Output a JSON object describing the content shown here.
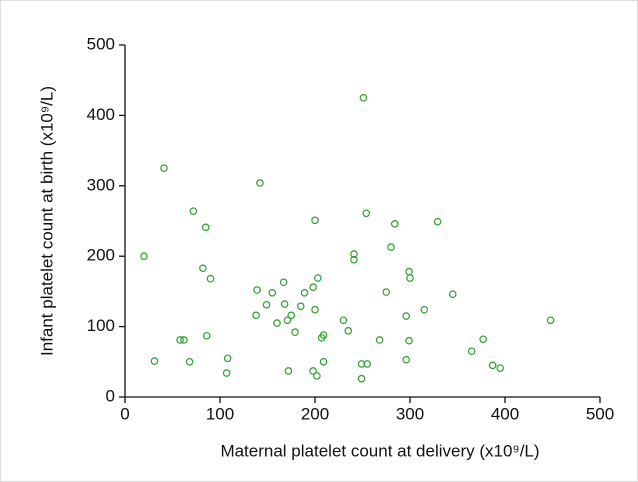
{
  "chart_data": {
    "type": "scatter",
    "xlabel": "Maternal platelet count at delivery (x10⁹/L)",
    "ylabel": "Infant platelet count at birth (x10⁹/L)",
    "color": "#2e9e2e",
    "xlim": [
      0,
      500
    ],
    "xticks": [
      0,
      100,
      200,
      300,
      400,
      500
    ],
    "ylim": [
      0,
      500
    ],
    "yticks": [
      0,
      100,
      200,
      300,
      400,
      500
    ],
    "grid": false,
    "x": [
      20,
      41,
      31,
      72,
      85,
      82,
      90,
      86,
      58,
      62,
      68,
      108,
      107,
      142,
      139,
      138,
      155,
      149,
      160,
      167,
      168,
      171,
      175,
      179,
      185,
      189,
      198,
      200,
      203,
      200,
      172,
      198,
      202,
      207,
      209,
      209,
      230,
      235,
      241,
      241,
      251,
      254,
      249,
      255,
      249,
      268,
      275,
      280,
      284,
      296,
      296,
      299,
      299,
      300,
      315,
      329,
      345,
      365,
      377,
      387,
      395,
      448
    ],
    "values": [
      200,
      325,
      51,
      264,
      241,
      183,
      168,
      87,
      81,
      81,
      50,
      55,
      34,
      304,
      152,
      116,
      148,
      131,
      105,
      163,
      132,
      109,
      116,
      92,
      129,
      148,
      156,
      124,
      169,
      251,
      37,
      37,
      30,
      84,
      88,
      50,
      109,
      94,
      203,
      195,
      425,
      261,
      47,
      47,
      26,
      81,
      149,
      213,
      246,
      115,
      53,
      80,
      178,
      169,
      124,
      249,
      146,
      65,
      82,
      45,
      41,
      109
    ]
  }
}
